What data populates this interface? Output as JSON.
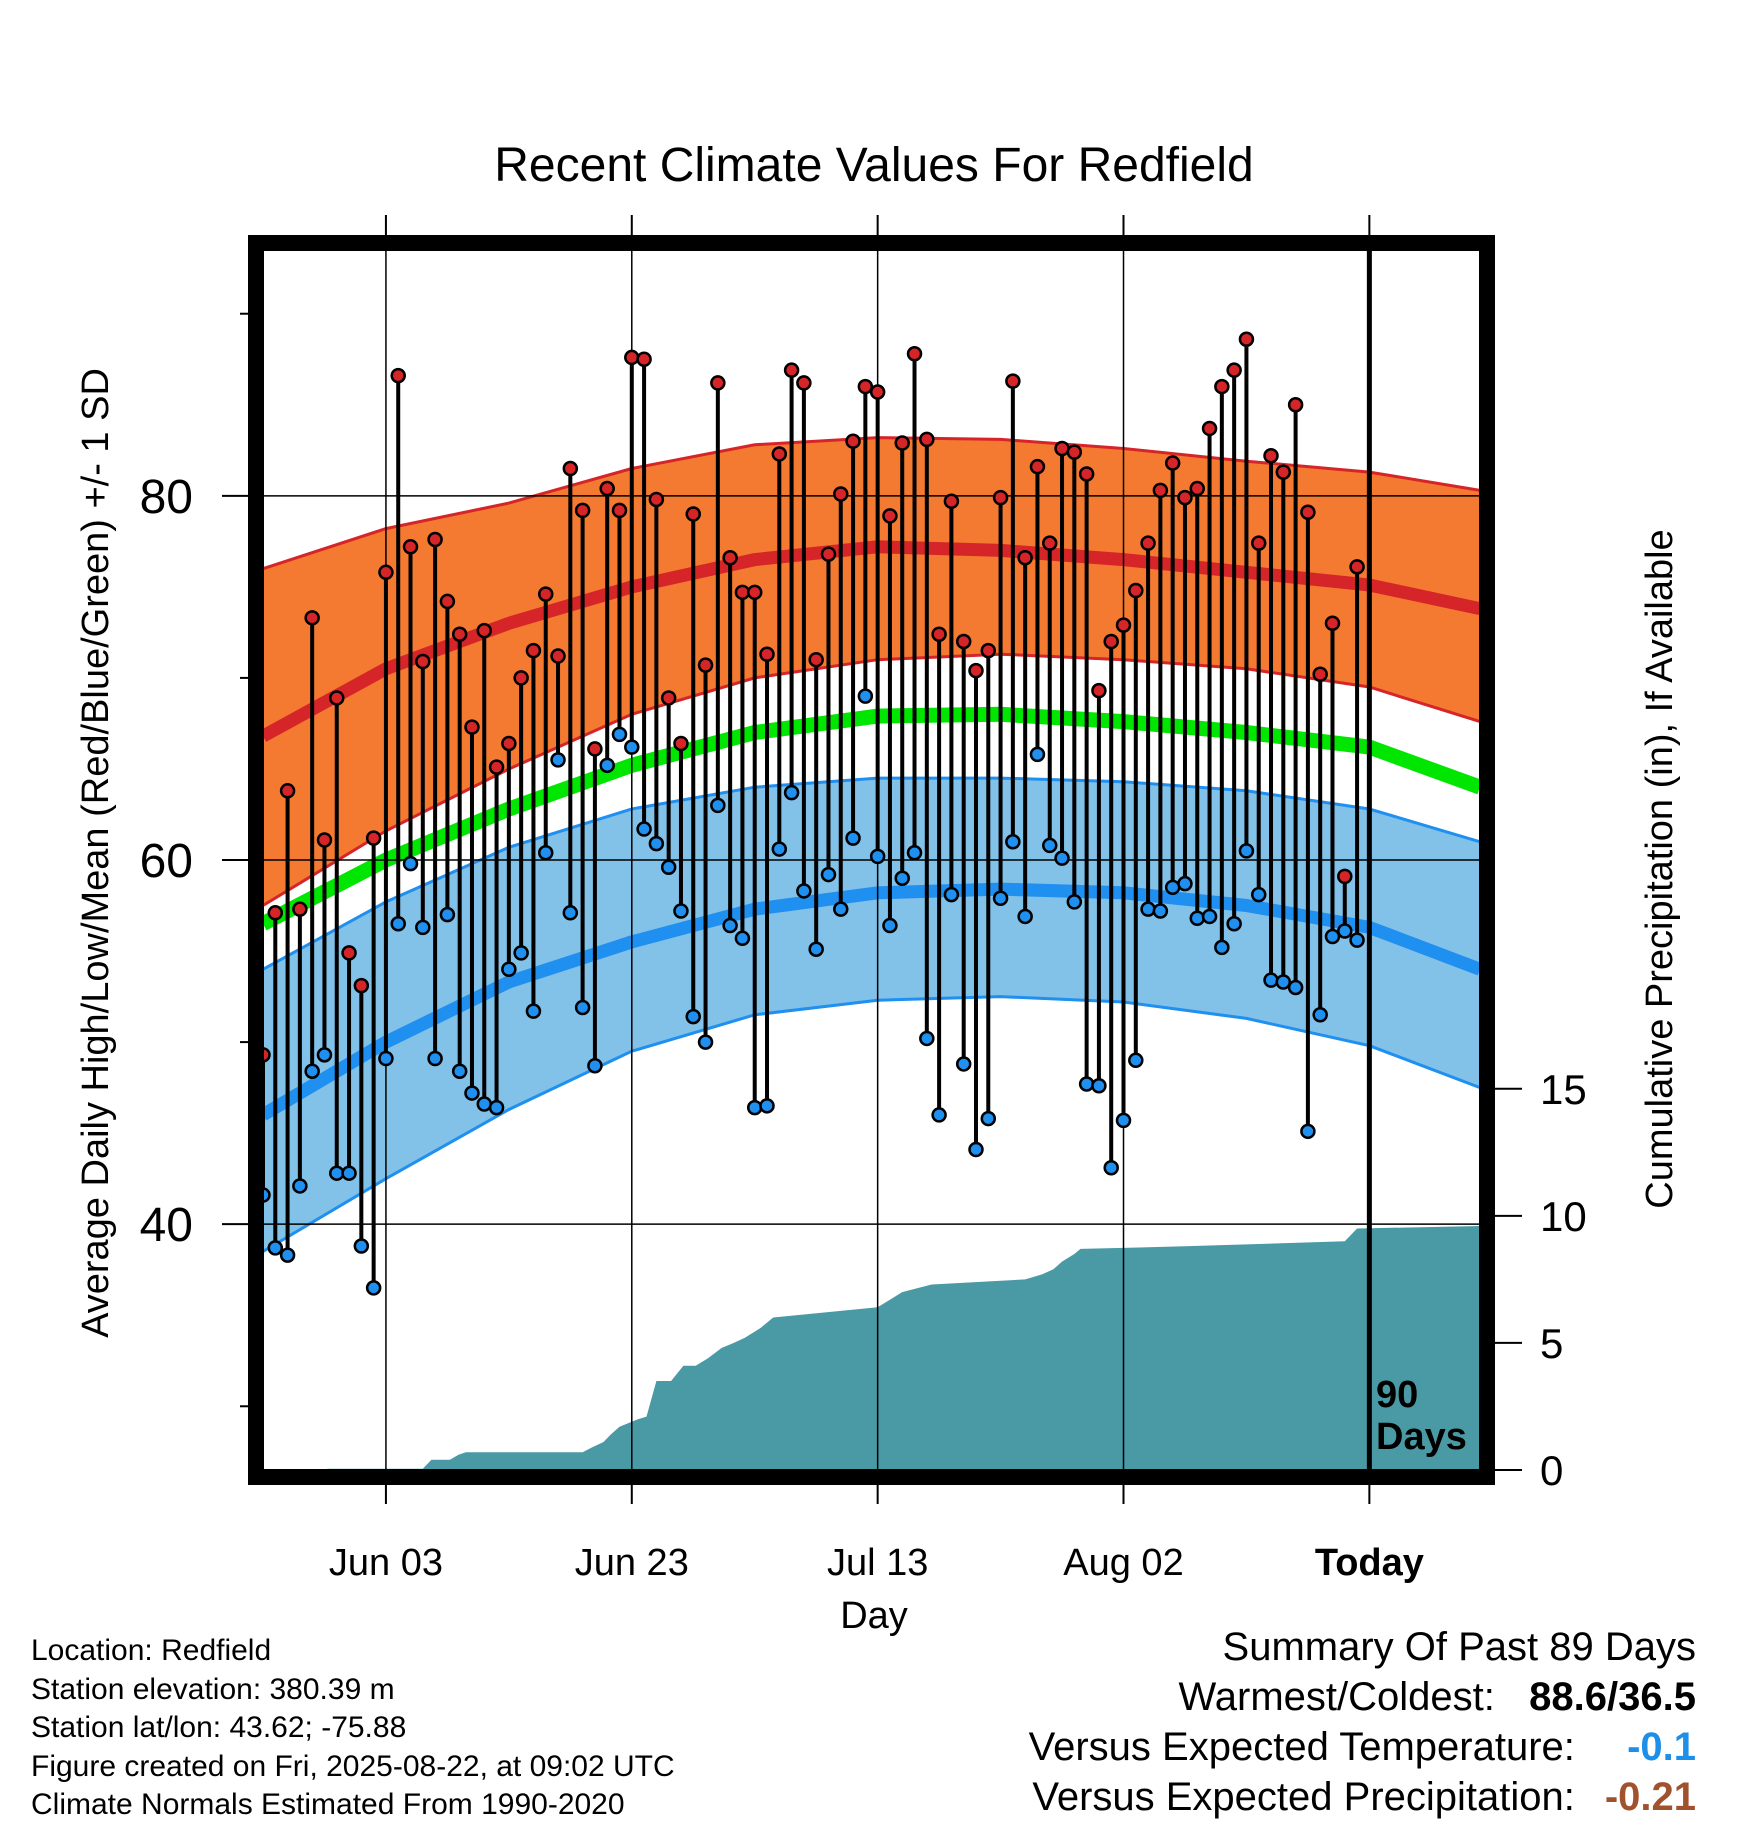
{
  "title": "Recent Climate Values For Redfield",
  "y_label_left": "Average Daily High/Low/Mean (Red/Blue/Green) +/- 1 SD",
  "y_label_right": "Cumulative Precipitation (in), If Available",
  "x_label": "Day",
  "today_marker": {
    "line1": "90",
    "line2": "Days"
  },
  "colors": {
    "high_band": "#f47a31",
    "high_line": "#d62528",
    "low_band": "#82c1e8",
    "low_line": "#1f8ff0",
    "mean_line": "#00e600",
    "precip": "#4a9aa5",
    "high_dot": "#d62528",
    "low_dot": "#1f8ff0",
    "neg_temp": "#1e8fe8",
    "neg_precip": "#a0522d"
  },
  "info": {
    "location": "Location: Redfield",
    "elevation": "Station elevation: 380.39 m",
    "latlon": "Station lat/lon: 43.62; -75.88",
    "created": "Figure created on Fri, 2025-08-22, at 09:02 UTC",
    "normals": "Climate Normals Estimated From 1990-2020"
  },
  "summary": {
    "title": "Summary Of Past 89 Days",
    "warm_cold_label": "Warmest/Coldest:",
    "warm_cold_value": "88.6/36.5",
    "temp_label": "Versus Expected Temperature:",
    "temp_value": "-0.1",
    "precip_label": "Versus Expected Precipitation:",
    "precip_value": "-0.21"
  },
  "chart_data": {
    "type": "line",
    "x_unit": "days since start",
    "x_range": [
      0,
      99
    ],
    "x_ticks": [
      {
        "x": 10,
        "label": "Jun 03"
      },
      {
        "x": 30,
        "label": "Jun 23"
      },
      {
        "x": 50,
        "label": "Jul 13"
      },
      {
        "x": 70,
        "label": "Aug 02"
      },
      {
        "x": 90,
        "label": "Today"
      }
    ],
    "y_left": {
      "range": [
        26.5,
        93.5
      ],
      "ticks": [
        40,
        60,
        80
      ],
      "minor_ticks": [
        30,
        50,
        70,
        90
      ]
    },
    "y_right": {
      "range": [
        0,
        48
      ],
      "ticks": [
        0,
        5,
        10,
        15
      ]
    },
    "grid": true,
    "normals": {
      "x": [
        0,
        10,
        20,
        30,
        40,
        50,
        60,
        70,
        80,
        90,
        99
      ],
      "high_mean": [
        66.8,
        70.5,
        73.0,
        75.0,
        76.5,
        77.2,
        77.0,
        76.5,
        75.8,
        75.1,
        73.8
      ],
      "high_upper": [
        76.0,
        78.2,
        79.6,
        81.5,
        82.8,
        83.2,
        83.1,
        82.6,
        81.9,
        81.3,
        80.3
      ],
      "high_lower": [
        57.5,
        61.6,
        65.0,
        68.0,
        70.0,
        71.0,
        71.3,
        71.0,
        70.5,
        69.5,
        67.6
      ],
      "mean": [
        56.5,
        60.0,
        62.8,
        65.2,
        67.0,
        67.9,
        68.0,
        67.6,
        67.0,
        66.2,
        64.0
      ],
      "low_mean": [
        46.0,
        50.0,
        53.3,
        55.5,
        57.3,
        58.2,
        58.4,
        58.2,
        57.5,
        56.3,
        54.0
      ],
      "low_upper": [
        54.0,
        57.7,
        60.7,
        62.8,
        64.0,
        64.5,
        64.5,
        64.3,
        63.8,
        62.8,
        61.0
      ],
      "low_lower": [
        38.5,
        42.5,
        46.3,
        49.5,
        51.5,
        52.3,
        52.5,
        52.2,
        51.3,
        49.8,
        47.5
      ]
    },
    "daily": {
      "x": [
        0,
        1,
        2,
        3,
        4,
        5,
        6,
        7,
        8,
        9,
        10,
        11,
        12,
        13,
        14,
        15,
        16,
        17,
        18,
        19,
        20,
        21,
        22,
        23,
        24,
        25,
        26,
        27,
        28,
        29,
        30,
        31,
        32,
        33,
        34,
        35,
        36,
        37,
        38,
        39,
        40,
        41,
        42,
        43,
        44,
        45,
        46,
        47,
        48,
        49,
        50,
        51,
        52,
        53,
        54,
        55,
        56,
        57,
        58,
        59,
        60,
        61,
        62,
        63,
        64,
        65,
        66,
        67,
        68,
        69,
        70,
        71,
        72,
        73,
        74,
        75,
        76,
        77,
        78,
        79,
        80,
        81,
        82,
        83,
        84,
        85,
        86,
        87,
        88,
        89
      ],
      "high": [
        49.3,
        57.1,
        63.8,
        57.3,
        73.3,
        61.1,
        68.9,
        54.9,
        53.1,
        61.2,
        75.8,
        86.6,
        77.2,
        70.9,
        77.6,
        74.2,
        72.4,
        67.3,
        72.6,
        65.1,
        66.4,
        70.0,
        71.5,
        74.6,
        71.2,
        81.5,
        79.2,
        66.1,
        80.4,
        79.2,
        87.6,
        87.5,
        79.8,
        68.9,
        66.4,
        79.0,
        70.7,
        86.2,
        76.6,
        74.7,
        74.7,
        71.3,
        82.3,
        86.9,
        86.2,
        71.0,
        76.8,
        80.1,
        83.0,
        86.0,
        85.7,
        78.9,
        82.9,
        87.8,
        83.1,
        72.4,
        79.7,
        72.0,
        70.4,
        71.5,
        79.9,
        86.3,
        76.6,
        81.6,
        77.4,
        82.6,
        82.4,
        81.2,
        69.3,
        72.0,
        72.9,
        74.8,
        77.4,
        80.3,
        81.8,
        79.9,
        80.4,
        83.7,
        86.0,
        86.9,
        88.6,
        77.4,
        82.2,
        81.3,
        85.0,
        79.1,
        70.2,
        73.0,
        59.1,
        76.1
      ],
      "low": [
        41.6,
        38.7,
        38.3,
        42.1,
        48.4,
        49.3,
        42.8,
        42.8,
        38.8,
        36.5,
        49.1,
        56.5,
        59.8,
        56.3,
        49.1,
        57.0,
        48.4,
        47.2,
        46.6,
        46.4,
        54.0,
        54.9,
        51.7,
        60.4,
        65.5,
        57.1,
        51.9,
        48.7,
        65.2,
        66.9,
        66.2,
        61.7,
        60.9,
        59.6,
        57.2,
        51.4,
        50.0,
        63.0,
        56.4,
        55.7,
        46.4,
        46.5,
        60.6,
        63.7,
        58.3,
        55.1,
        59.2,
        57.3,
        61.2,
        69.0,
        60.2,
        56.4,
        59.0,
        60.4,
        50.2,
        46.0,
        58.1,
        48.8,
        44.1,
        45.8,
        57.9,
        61.0,
        56.9,
        65.8,
        60.8,
        60.1,
        57.7,
        47.7,
        47.6,
        43.1,
        45.7,
        49.0,
        57.3,
        57.2,
        58.5,
        58.7,
        56.8,
        56.9,
        55.2,
        56.5,
        60.5,
        58.1,
        53.4,
        53.3,
        53.0,
        45.1,
        51.5,
        55.8,
        56.1,
        55.6
      ]
    },
    "precip_cumulative": {
      "x": [
        0,
        4.5,
        5.3,
        13,
        13.7,
        15.2,
        15.9,
        16.5,
        26,
        26.8,
        27.7,
        28.3,
        29,
        30.5,
        31.2,
        32,
        33.2,
        34.2,
        35.2,
        36.2,
        37.3,
        38.3,
        39.2,
        40.5,
        41.5,
        50,
        51,
        52,
        53.6,
        54.4,
        62,
        63.4,
        64.3,
        65,
        66,
        66.5,
        75,
        88,
        89,
        99
      ],
      "values": [
        0,
        0,
        0.05,
        0.05,
        0.4,
        0.4,
        0.6,
        0.7,
        0.7,
        0.9,
        1.1,
        1.4,
        1.7,
        2.0,
        2.1,
        3.5,
        3.5,
        4.1,
        4.1,
        4.4,
        4.8,
        5.0,
        5.2,
        5.6,
        6.0,
        6.4,
        6.7,
        7.0,
        7.2,
        7.3,
        7.5,
        7.7,
        7.9,
        8.2,
        8.5,
        8.7,
        8.8,
        9.0,
        9.5,
        9.6
      ]
    }
  }
}
